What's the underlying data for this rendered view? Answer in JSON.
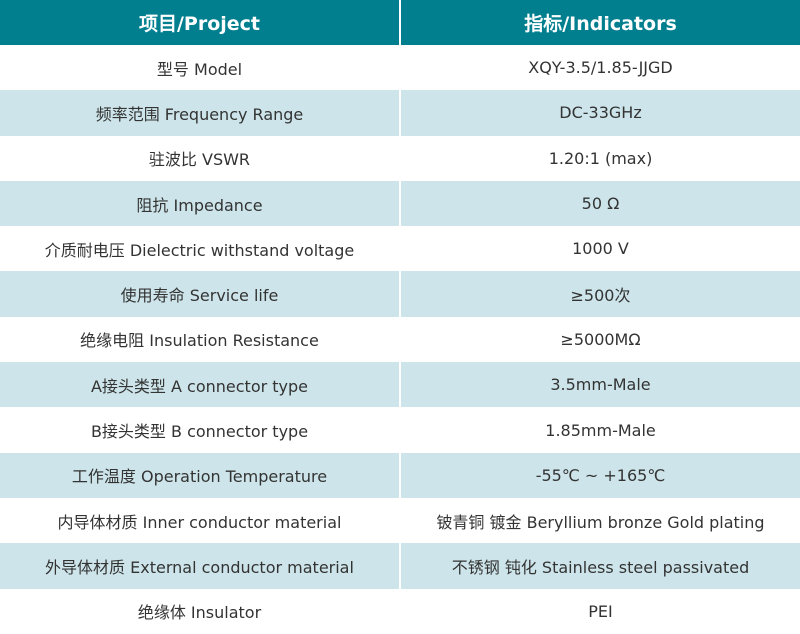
{
  "header": {
    "project": "项目/Project",
    "indicators": "指标/Indicators"
  },
  "colors": {
    "header_bg": "#027f8f",
    "stripe_bg": "#cde5ea"
  },
  "rows": [
    {
      "project": "型号 Model",
      "value": "XQY-3.5/1.85-JJGD"
    },
    {
      "project": "频率范围 Frequency Range",
      "value": "DC-33GHz"
    },
    {
      "project": "驻波比 VSWR",
      "value": "1.20:1 (max)"
    },
    {
      "project": "阻抗 Impedance",
      "value": "50 Ω"
    },
    {
      "project": "介质耐电压 Dielectric withstand voltage",
      "value": "1000 V"
    },
    {
      "project": "使用寿命 Service life",
      "value": "≥500次"
    },
    {
      "project": "绝缘电阻 Insulation Resistance",
      "value": "≥5000MΩ"
    },
    {
      "project": "A接头类型 A connector type",
      "value": "3.5mm-Male"
    },
    {
      "project": "B接头类型 B connector type",
      "value": "1.85mm-Male"
    },
    {
      "project": "工作温度 Operation Temperature",
      "value": "-55℃ ~ +165℃"
    },
    {
      "project": "内导体材质 Inner conductor material",
      "value": "铍青铜 镀金 Beryllium bronze Gold plating"
    },
    {
      "project": "外导体材质 External conductor material",
      "value": "不锈钢 钝化 Stainless steel passivated"
    },
    {
      "project": "绝缘体 Insulator",
      "value": "PEI"
    }
  ]
}
